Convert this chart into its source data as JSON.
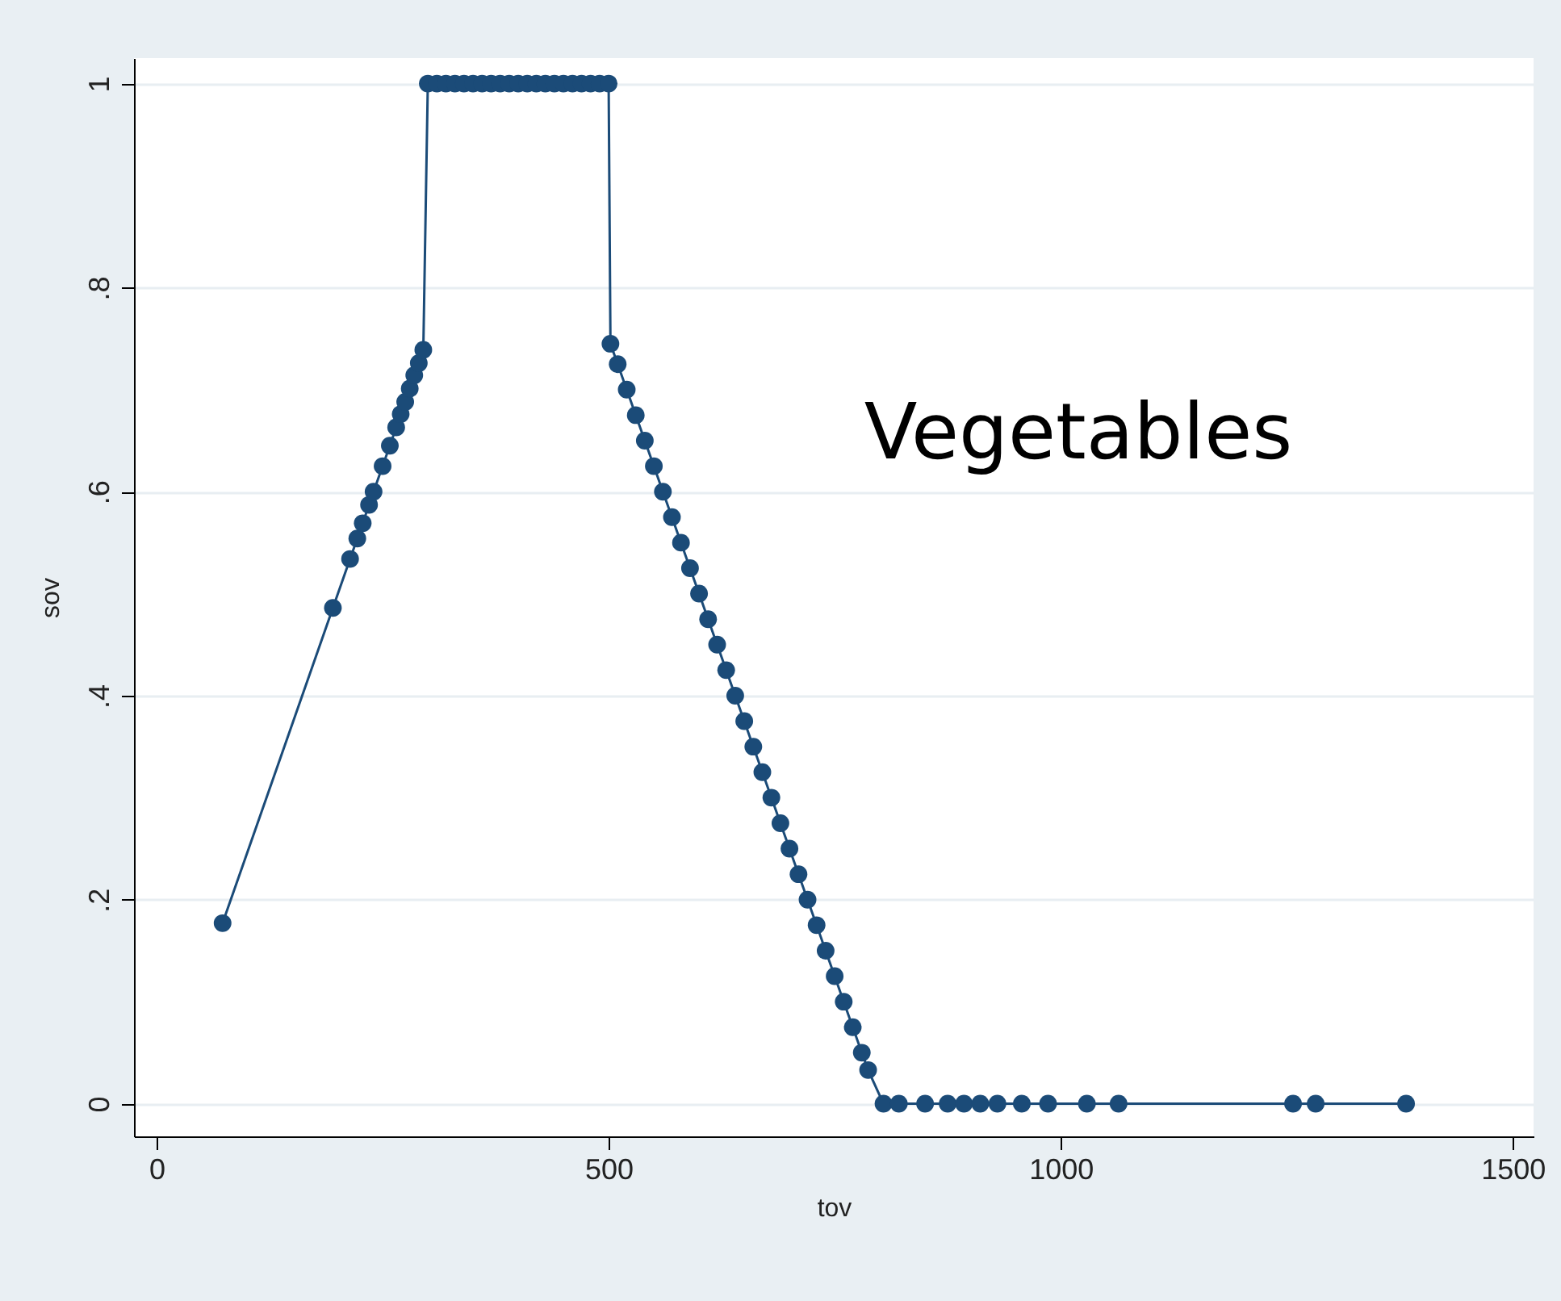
{
  "chart_data": {
    "type": "line",
    "xlabel": "tov",
    "ylabel": "sov",
    "annotations": [
      "Vegetables"
    ],
    "x": [
      73,
      195,
      214,
      222,
      228,
      235,
      240,
      250,
      258,
      265,
      270,
      275,
      280,
      285,
      290,
      295,
      300,
      310,
      320,
      330,
      340,
      350,
      360,
      370,
      380,
      390,
      400,
      410,
      420,
      430,
      440,
      450,
      460,
      470,
      480,
      490,
      500,
      502,
      510,
      520,
      530,
      540,
      550,
      560,
      570,
      580,
      590,
      600,
      610,
      620,
      630,
      640,
      650,
      660,
      670,
      680,
      690,
      700,
      710,
      720,
      730,
      740,
      750,
      760,
      770,
      780,
      787,
      804,
      821,
      850,
      875,
      893,
      911,
      930,
      957,
      986,
      1029,
      1064,
      1257,
      1282,
      1382
    ],
    "series": [
      {
        "color": "#1b4b78",
        "values": [
          0.177,
          0.486,
          0.534,
          0.554,
          0.569,
          0.587,
          0.6,
          0.625,
          0.645,
          0.663,
          0.676,
          0.688,
          0.701,
          0.714,
          0.726,
          0.739,
          1,
          1,
          1,
          1,
          1,
          1,
          1,
          1,
          1,
          1,
          1,
          1,
          1,
          1,
          1,
          1,
          1,
          1,
          1,
          1,
          1,
          0.745,
          0.725,
          0.7,
          0.675,
          0.65,
          0.625,
          0.6,
          0.575,
          0.55,
          0.525,
          0.5,
          0.475,
          0.45,
          0.425,
          0.4,
          0.375,
          0.35,
          0.325,
          0.3,
          0.275,
          0.25,
          0.225,
          0.2,
          0.175,
          0.15,
          0.125,
          0.1,
          0.075,
          0.05,
          0.033,
          0,
          0,
          0,
          0,
          0,
          0,
          0,
          0,
          0,
          0,
          0,
          0,
          0,
          0
        ]
      }
    ],
    "xlim": [
      -25,
      1523
    ],
    "ylim": [
      -0.032,
      1.025
    ],
    "xticks": [
      0,
      500,
      1000,
      1500
    ],
    "yticks": [
      0,
      {
        "value": 0.2,
        "label": ".2"
      },
      {
        "value": 0.4,
        "label": ".4"
      },
      {
        "value": 0.6,
        "label": ".6"
      },
      {
        "value": 0.8,
        "label": ".8"
      },
      1
    ],
    "grid": "y",
    "marker": "circle",
    "line_style": "solid"
  }
}
